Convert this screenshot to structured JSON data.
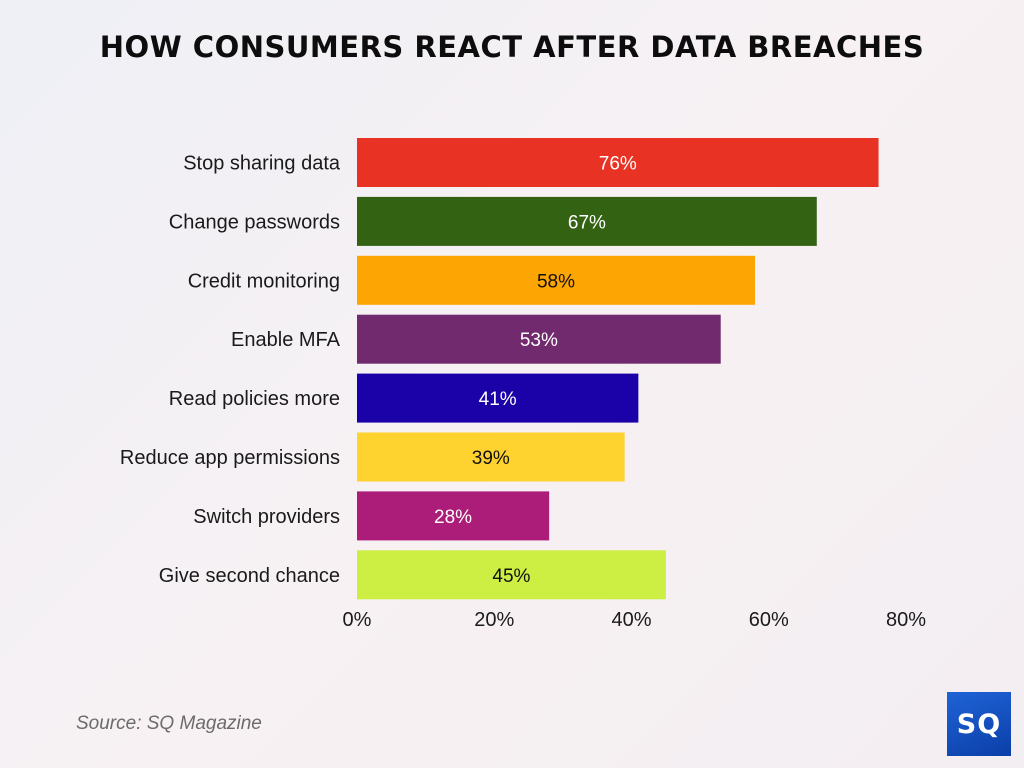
{
  "chart_data": {
    "type": "bar",
    "orientation": "horizontal",
    "title": "HOW CONSUMERS REACT AFTER DATA BREACHES",
    "categories": [
      "Stop sharing data",
      "Change passwords",
      "Credit monitoring",
      "Enable MFA",
      "Read policies more",
      "Reduce app permissions",
      "Switch providers",
      "Give second chance"
    ],
    "values": [
      76,
      67,
      58,
      53,
      41,
      39,
      28,
      45
    ],
    "data_labels": [
      "76%",
      "67%",
      "58%",
      "53%",
      "41%",
      "39%",
      "28%",
      "45%"
    ],
    "colors": [
      "#e83223",
      "#336212",
      "#fca503",
      "#722a6e",
      "#1a02a8",
      "#fed22f",
      "#ac1c79",
      "#cdee43"
    ],
    "label_colors": [
      "#ffffff",
      "#ffffff",
      "#111111",
      "#ffffff",
      "#ffffff",
      "#111111",
      "#ffffff",
      "#111111"
    ],
    "xlim": [
      0,
      80
    ],
    "xticks": [
      0,
      20,
      40,
      60,
      80
    ],
    "xtick_labels": [
      "0%",
      "20%",
      "40%",
      "60%",
      "80%"
    ],
    "xlabel": "",
    "ylabel": "",
    "grid": false
  },
  "source": "Source: SQ Magazine",
  "logo_text": "SQ"
}
